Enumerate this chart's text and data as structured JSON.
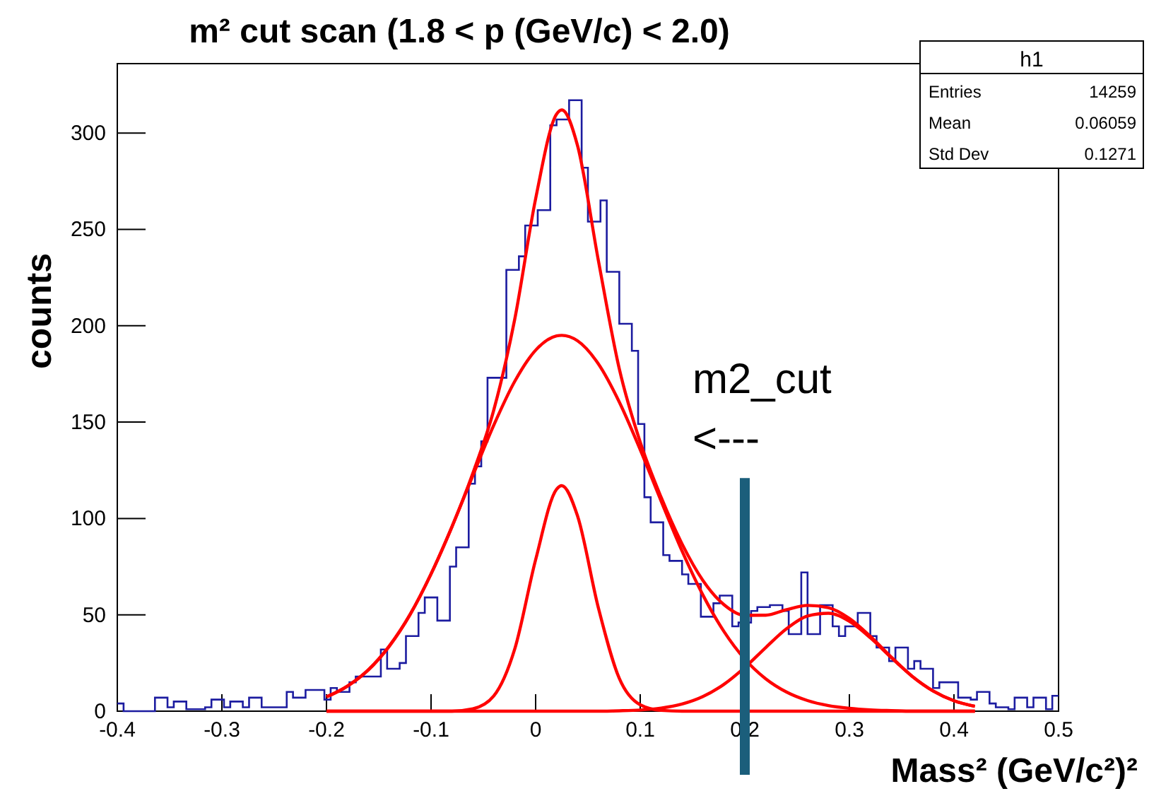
{
  "chart_data": {
    "type": "histogram",
    "title": "m² cut scan (1.8 < p (GeV/c) < 2.0)",
    "xlabel": "Mass² (GeV/c²)²",
    "ylabel": "counts",
    "bins": [
      -0.4,
      -0.394,
      -0.388,
      -0.382,
      -0.376,
      -0.37,
      -0.364,
      -0.358,
      -0.352,
      -0.346,
      -0.34,
      -0.334,
      -0.328,
      -0.322,
      -0.316,
      -0.31,
      -0.304,
      -0.298,
      -0.292,
      -0.286,
      -0.28,
      -0.274,
      -0.268,
      -0.262,
      -0.256,
      -0.25,
      -0.244,
      -0.238,
      -0.232,
      -0.226,
      -0.22,
      -0.214,
      -0.208,
      -0.202,
      -0.196,
      -0.19,
      -0.184,
      -0.178,
      -0.172,
      -0.166,
      -0.16,
      -0.154,
      -0.148,
      -0.142,
      -0.136,
      -0.13,
      -0.124,
      -0.118,
      -0.112,
      -0.106,
      -0.1,
      -0.094,
      -0.088,
      -0.082,
      -0.076,
      -0.07,
      -0.064,
      -0.058,
      -0.052,
      -0.046,
      -0.04,
      -0.034,
      -0.028,
      -0.022,
      -0.016,
      -0.01,
      -0.004,
      0.002,
      0.008,
      0.014,
      0.02,
      0.026,
      0.032,
      0.038,
      0.044,
      0.05,
      0.056,
      0.062,
      0.068,
      0.074,
      0.08,
      0.086,
      0.092,
      0.098,
      0.104,
      0.11,
      0.116,
      0.122,
      0.128,
      0.134,
      0.14,
      0.146,
      0.152,
      0.158,
      0.164,
      0.17,
      0.176,
      0.182,
      0.188,
      0.194,
      0.2,
      0.206,
      0.212,
      0.218,
      0.224,
      0.23,
      0.236,
      0.242,
      0.248,
      0.254,
      0.26,
      0.266,
      0.272,
      0.278,
      0.284,
      0.29,
      0.296,
      0.302,
      0.308,
      0.314,
      0.32,
      0.326,
      0.332,
      0.338,
      0.344,
      0.35,
      0.356,
      0.362,
      0.368,
      0.374,
      0.38,
      0.386,
      0.392,
      0.398,
      0.404,
      0.41,
      0.416,
      0.422,
      0.428,
      0.434,
      0.44,
      0.446,
      0.452,
      0.458,
      0.464,
      0.47,
      0.476,
      0.482,
      0.488,
      0.494,
      0.5
    ],
    "values": [
      4,
      0,
      0,
      0,
      0,
      0,
      7,
      7,
      2,
      5,
      5,
      1,
      1,
      1,
      2,
      6,
      6,
      2,
      5,
      5,
      2,
      7,
      7,
      2,
      2,
      2,
      2,
      10,
      7,
      7,
      11,
      11,
      11,
      6,
      12,
      10,
      10,
      15,
      18,
      18,
      18,
      18,
      32,
      22,
      22,
      25,
      39,
      39,
      51,
      59,
      59,
      47,
      47,
      75,
      85,
      85,
      118,
      127,
      140,
      173,
      173,
      173,
      229,
      229,
      236,
      252,
      252,
      260,
      260,
      304,
      307,
      307,
      317,
      317,
      282,
      254,
      254,
      265,
      228,
      228,
      201,
      201,
      187,
      149,
      111,
      98,
      98,
      81,
      78,
      78,
      71,
      66,
      66,
      49,
      49,
      56,
      60,
      60,
      44,
      46,
      46,
      52,
      54,
      54,
      55,
      55,
      52,
      40,
      40,
      72,
      40,
      40,
      55,
      55,
      44,
      39,
      44,
      44,
      51,
      51,
      39,
      33,
      33,
      26,
      33,
      33,
      22,
      26,
      22,
      22,
      12,
      15,
      15,
      15,
      7,
      7,
      6,
      10,
      10,
      4,
      2,
      2,
      1,
      7,
      7,
      2,
      7,
      7,
      1,
      8
    ],
    "color": "#1c1ca0",
    "series": [
      {
        "type": "line",
        "color": "#ff0000",
        "x": [
          -0.2,
          -0.18,
          -0.16,
          -0.14,
          -0.12,
          -0.1,
          -0.08,
          -0.06,
          -0.04,
          -0.02,
          0,
          0.02,
          0.025,
          0.04,
          0.06,
          0.08,
          0.1,
          0.12,
          0.14,
          0.16,
          0.18,
          0.2,
          0.22,
          0.24,
          0.26,
          0.28,
          0.3,
          0.32,
          0.34,
          0.36,
          0.38,
          0.4,
          0.42
        ],
        "values": [
          7.4,
          13,
          21.4,
          33.7,
          50.2,
          71.2,
          95.7,
          123.5,
          156.3,
          203.3,
          265.9,
          309.8,
          312,
          293.6,
          233.8,
          177.6,
          139.6,
          111,
          86.8,
          67.8,
          55.3,
          49.7,
          49.8,
          52.7,
          54.9,
          53.7,
          48.1,
          38.8,
          28.1,
          18.1,
          10.5,
          5.4,
          2.5
        ]
      },
      {
        "type": "line",
        "color": "#ff0000",
        "x": [
          -0.2,
          -0.18,
          -0.16,
          -0.14,
          -0.12,
          -0.1,
          -0.08,
          -0.06,
          -0.04,
          -0.02,
          0,
          0.02,
          0.025,
          0.04,
          0.06,
          0.08,
          0.1,
          0.12,
          0.14,
          0.16,
          0.18,
          0.2,
          0.22,
          0.24,
          0.26,
          0.28,
          0.3,
          0.32,
          0.34,
          0.36,
          0.38,
          0.4,
          0.42
        ],
        "values": [
          7.4,
          13,
          21.4,
          33.7,
          50.2,
          71.2,
          95.7,
          122.3,
          148.4,
          171.1,
          187.3,
          194.7,
          195,
          192.2,
          180.2,
          160.4,
          135.7,
          109,
          83.1,
          60.2,
          41.4,
          27,
          16.8,
          9.9,
          5.5,
          2.9,
          1.5,
          0.7,
          0.3,
          0,
          0,
          0,
          0
        ]
      },
      {
        "type": "line",
        "color": "#ff0000",
        "x": [
          -0.2,
          -0.08,
          -0.06,
          -0.04,
          -0.02,
          0,
          0.02,
          0.025,
          0.04,
          0.06,
          0.08,
          0.1,
          0.12,
          0.14,
          0.42
        ],
        "values": [
          0,
          0,
          1.2,
          7.9,
          32.2,
          78.6,
          115.1,
          117,
          101.4,
          53.6,
          17,
          3.3,
          0.4,
          0,
          0
        ]
      },
      {
        "type": "line",
        "color": "#ff0000",
        "x": [
          -0.2,
          0.06,
          0.08,
          0.1,
          0.12,
          0.14,
          0.16,
          0.18,
          0.2,
          0.22,
          0.24,
          0.26,
          0.28,
          0.3,
          0.32,
          0.34,
          0.36,
          0.38,
          0.4,
          0.42
        ],
        "values": [
          0,
          0,
          0.2,
          0.6,
          1.6,
          3.7,
          7.6,
          13.9,
          22.7,
          33,
          42.8,
          49.4,
          50.8,
          46.6,
          38.1,
          27.8,
          18.1,
          10.5,
          5.4,
          2.5
        ]
      }
    ],
    "xlim": [
      -0.4,
      0.5
    ],
    "xticks": [
      -0.4,
      -0.3,
      -0.2,
      -0.1,
      0,
      0.1,
      0.2,
      0.3,
      0.4,
      0.5
    ],
    "ylim": [
      0,
      336
    ],
    "yticks": [
      0,
      50,
      100,
      150,
      200,
      250,
      300
    ],
    "ref_lines": [
      {
        "axis": "x",
        "value": 0.2,
        "color": "#1b5e7b"
      }
    ],
    "annotations": [
      "h1",
      "Entries",
      "14259",
      "Mean",
      "0.06059",
      "Std Dev",
      "0.1271",
      "m2_cut",
      "<---"
    ]
  }
}
